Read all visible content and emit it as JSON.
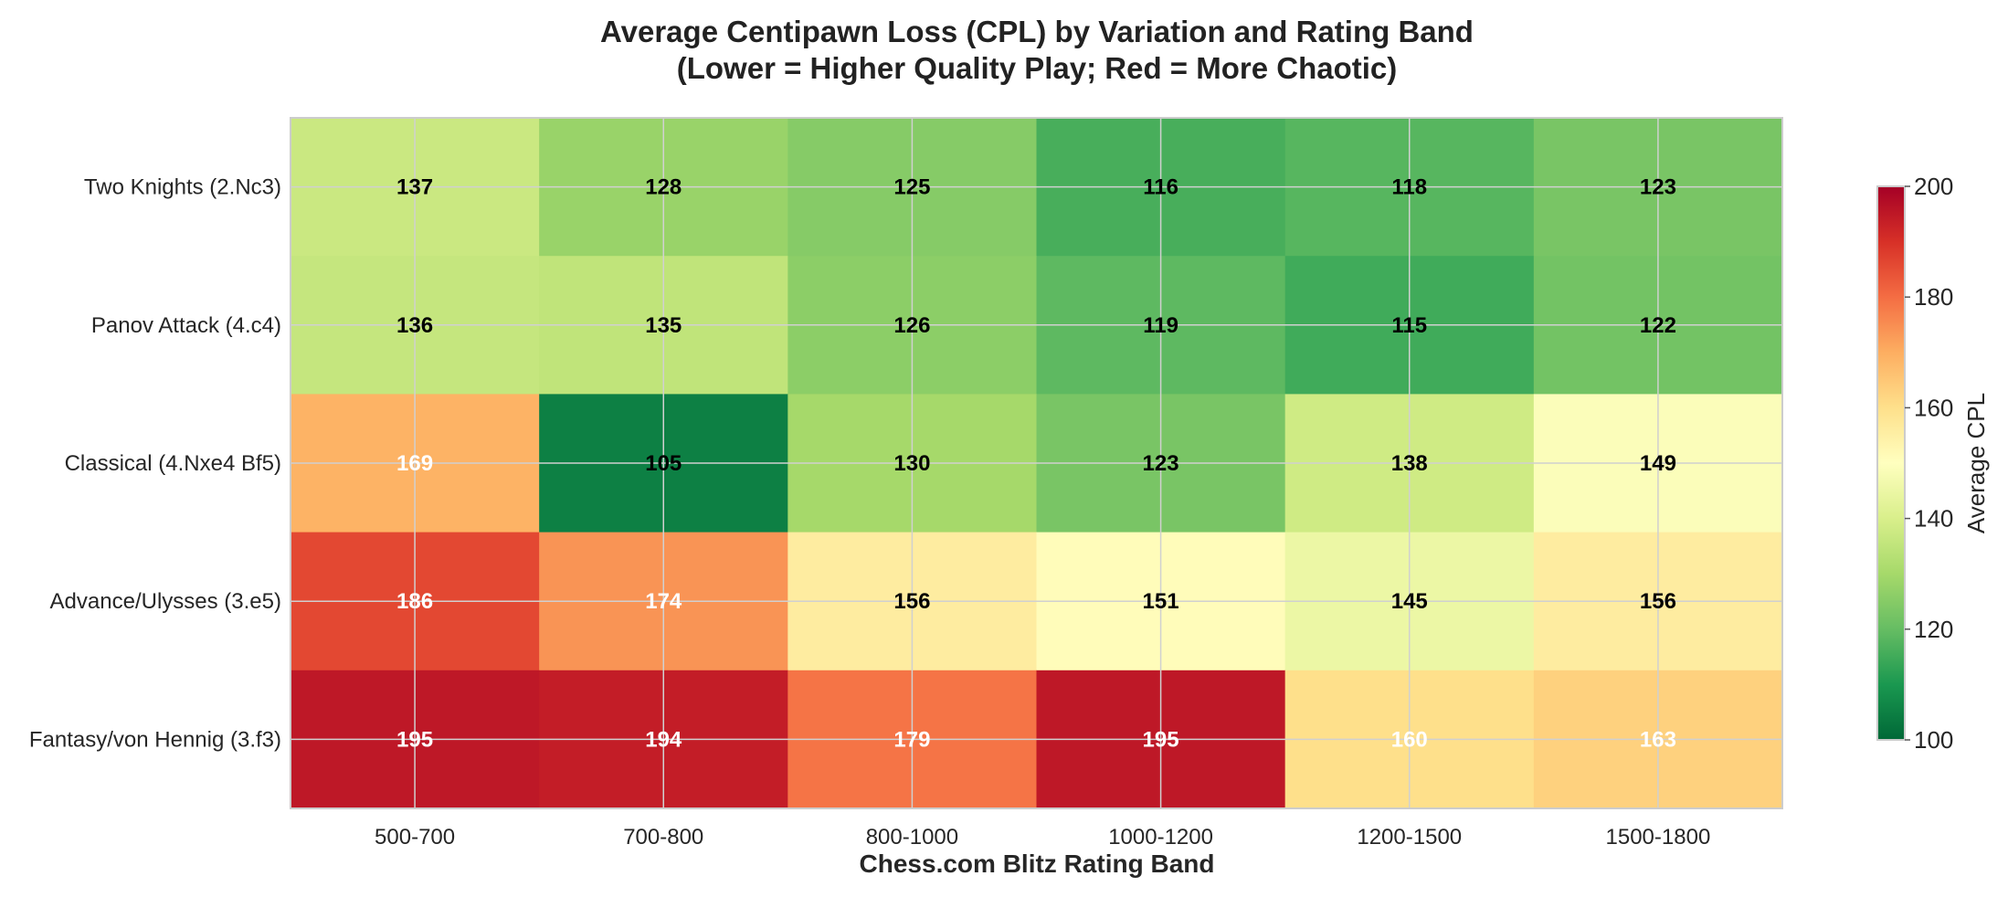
{
  "chart_data": {
    "type": "heatmap",
    "title": "Average Centipawn Loss (CPL) by Variation and Rating Band",
    "subtitle": "(Lower = Higher Quality Play; Red = More Chaotic)",
    "xlabel": "Chess.com Blitz Rating Band",
    "ylabel": "",
    "x_categories": [
      "500-700",
      "700-800",
      "800-1000",
      "1000-1200",
      "1200-1500",
      "1500-1800"
    ],
    "y_categories": [
      "Two Knights (2.Nc3)",
      "Panov Attack (4.c4)",
      "Classical (4.Nxe4 Bf5)",
      "Advance/Ulysses (3.e5)",
      "Fantasy/von Hennig (3.f3)"
    ],
    "values": [
      [
        137,
        128,
        125,
        116,
        118,
        123
      ],
      [
        136,
        135,
        126,
        119,
        115,
        122
      ],
      [
        169,
        105,
        130,
        123,
        138,
        149
      ],
      [
        186,
        174,
        156,
        151,
        145,
        156
      ],
      [
        195,
        194,
        179,
        195,
        160,
        163
      ]
    ],
    "colorbar": {
      "label": "Average CPL",
      "range": [
        100,
        200
      ],
      "ticks": [
        100,
        120,
        140,
        160,
        180,
        200
      ],
      "colormap": "RdYlGn_r"
    },
    "grid": true
  }
}
